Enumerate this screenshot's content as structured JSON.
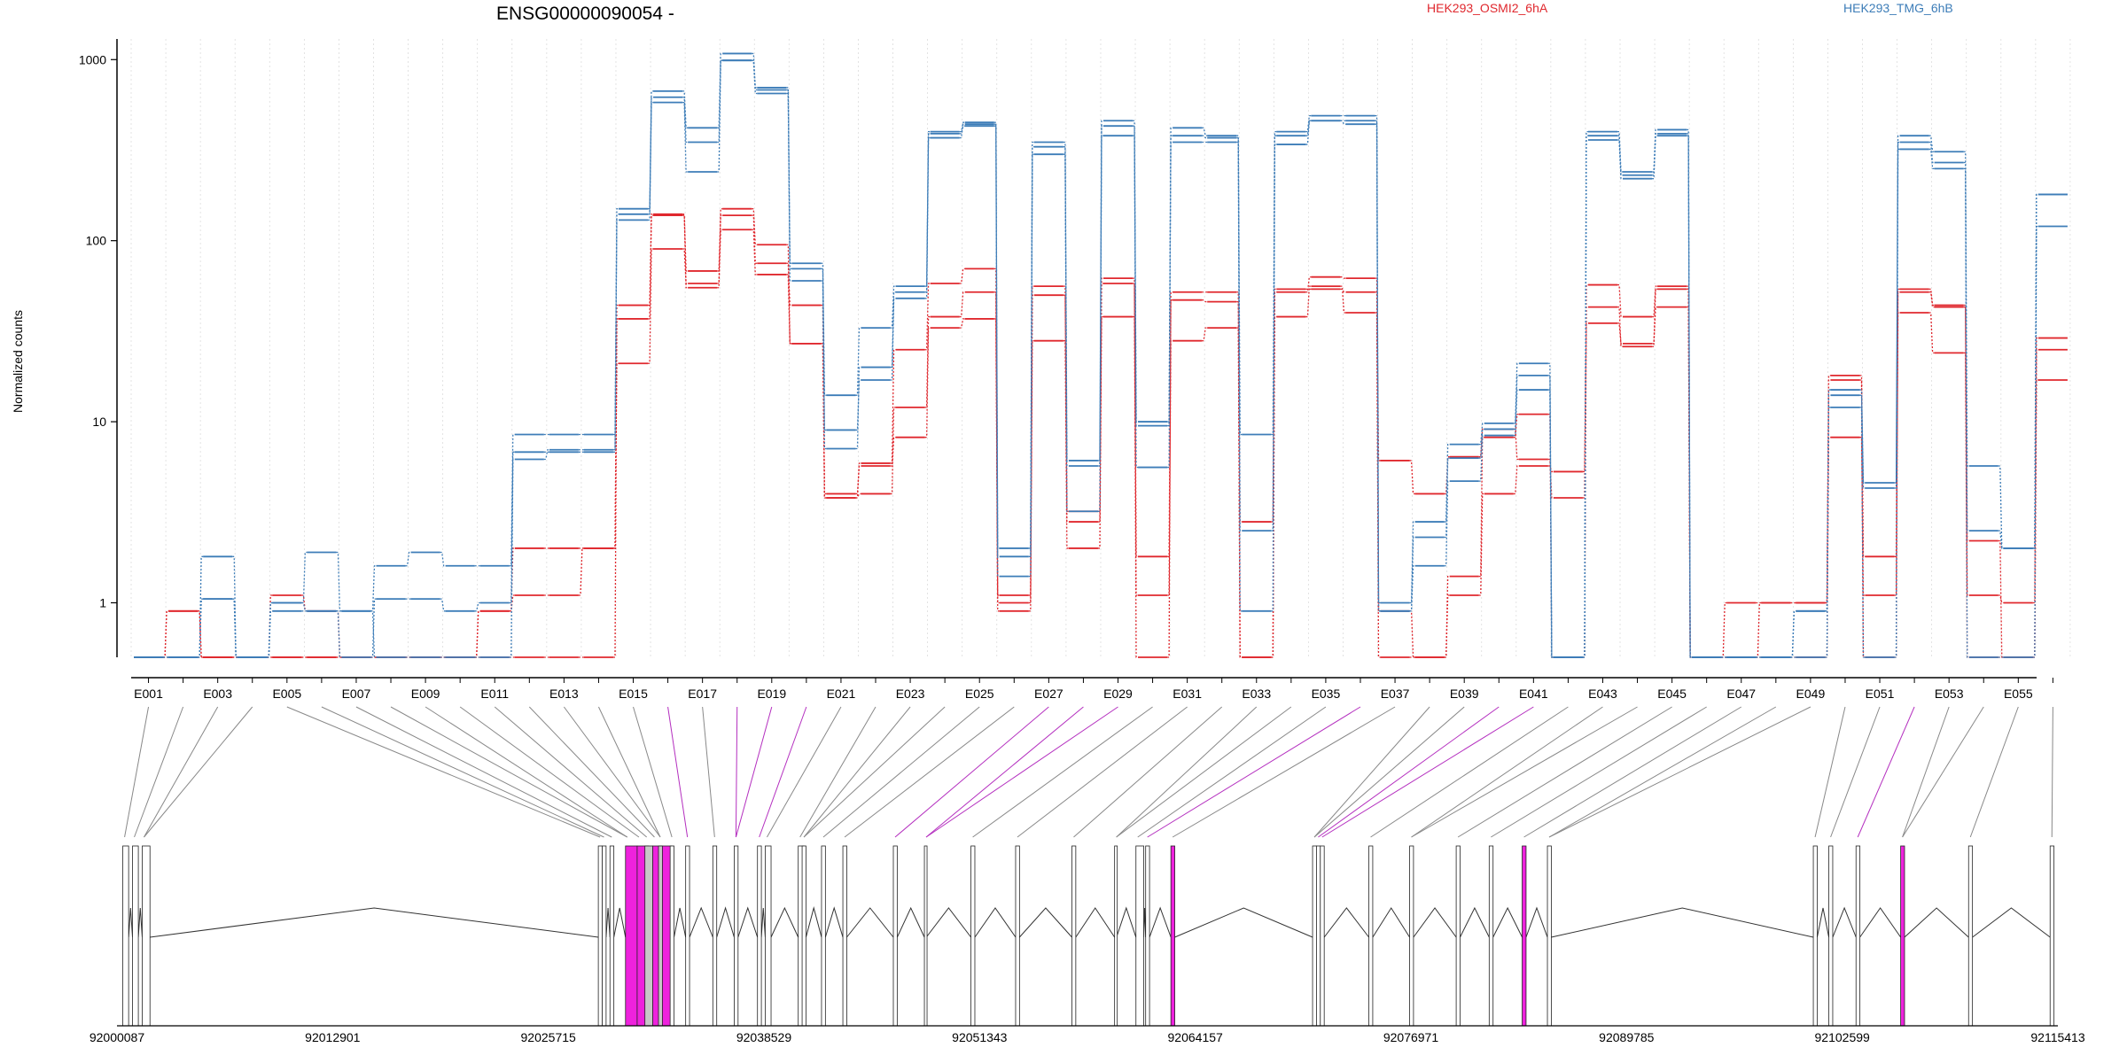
{
  "chart_data": {
    "type": "line",
    "title": "ENSG00000090054 -",
    "ylabel": "Normalized counts",
    "y_scale": "log",
    "y_ticks": [
      1,
      10,
      100,
      1000
    ],
    "y_tick_labels": [
      "1",
      "10",
      "100",
      "1000"
    ],
    "ylim": [
      0.5,
      1300
    ],
    "grid": "vertical lines per exon",
    "legend_placement": "top",
    "exons": [
      "E001",
      "E002",
      "E003",
      "E004",
      "E005",
      "E006",
      "E007",
      "E008",
      "E009",
      "E010",
      "E011",
      "E012",
      "E013",
      "E014",
      "E015",
      "E016",
      "E017",
      "E018",
      "E019",
      "E020",
      "E021",
      "E022",
      "E023",
      "E024",
      "E025",
      "E026",
      "E027",
      "E028",
      "E029",
      "E030",
      "E031",
      "E032",
      "E033",
      "E034",
      "E035",
      "E036",
      "E037",
      "E038",
      "E039",
      "E040",
      "E041",
      "E042",
      "E043",
      "E044",
      "E045",
      "E046",
      "E047",
      "E048",
      "E049",
      "E050",
      "E051",
      "E052",
      "E053",
      "E054",
      "E055",
      "E056"
    ],
    "x_tick_labels": [
      "E001",
      "E003",
      "E005",
      "E007",
      "E009",
      "E011",
      "E013",
      "E015",
      "E017",
      "E019",
      "E021",
      "E023",
      "E025",
      "E027",
      "E029",
      "E031",
      "E033",
      "E035",
      "E037",
      "E039",
      "E041",
      "E043",
      "E045",
      "E047",
      "E049",
      "E051",
      "E053",
      "E055"
    ],
    "series": [
      {
        "name": "HEK293_OSMI2_6hA",
        "color": "#e0282e",
        "replicates": [
          [
            0.5,
            0.5,
            0.5,
            0.5,
            1.1,
            0.9,
            0.5,
            0.5,
            0.5,
            0.5,
            0.9,
            1.1,
            1.1,
            2.0,
            21,
            90,
            58,
            115,
            65,
            27,
            4.0,
            5.7,
            8.2,
            33,
            37,
            0.9,
            28,
            2.0,
            38,
            1.1,
            28,
            33,
            0.5,
            38,
            56,
            40,
            0.5,
            0.5,
            1.1,
            4.0,
            5.7,
            5.3,
            35,
            27,
            43,
            0.5,
            0.5,
            0.5,
            0.5,
            8.2,
            1.1,
            40,
            24,
            0.5,
            0.5,
            17
          ],
          [
            0.5,
            0.9,
            0.5,
            0.5,
            0.5,
            0.5,
            0.5,
            0.5,
            0.5,
            0.5,
            0.5,
            0.5,
            0.5,
            0.5,
            37,
            138,
            68,
            138,
            75,
            44,
            3.8,
            4.0,
            12,
            38,
            52,
            1.1,
            50,
            2.8,
            58,
            1.8,
            47,
            46,
            2.8,
            54,
            54,
            52,
            0.9,
            0.5,
            1.4,
            8.2,
            11,
            0.5,
            43,
            26,
            54,
            0.5,
            0.5,
            1.0,
            1.0,
            18,
            1.8,
            54,
            44,
            1.1,
            1.0,
            29
          ],
          [
            0.5,
            0.9,
            0.5,
            0.5,
            0.5,
            0.5,
            0.5,
            0.5,
            0.5,
            0.5,
            0.9,
            2.0,
            2.0,
            2.0,
            44,
            140,
            55,
            150,
            95,
            27,
            3.8,
            5.9,
            25,
            58,
            70,
            1.0,
            56,
            3.2,
            62,
            0.5,
            52,
            52,
            0.5,
            52,
            63,
            62,
            6.1,
            4.0,
            6.4,
            9.1,
            6.2,
            3.8,
            57,
            38,
            56,
            0.5,
            1.0,
            1.0,
            1.0,
            17,
            0.5,
            52,
            43,
            2.2,
            0.5,
            25
          ]
        ]
      },
      {
        "name": "HEK293_TMG_6hB",
        "color": "#3d7db8",
        "replicates": [
          [
            0.5,
            0.5,
            1.05,
            0.5,
            0.9,
            0.9,
            0.9,
            0.5,
            0.5,
            0.5,
            0.5,
            6.2,
            7.0,
            7.0,
            130,
            580,
            240,
            990,
            680,
            70,
            9.0,
            17,
            48,
            370,
            440,
            1.8,
            300,
            5.7,
            380,
            9.5,
            350,
            350,
            0.9,
            340,
            460,
            440,
            0.9,
            1.6,
            4.7,
            8.4,
            15,
            0.5,
            360,
            220,
            380,
            0.5,
            0.5,
            0.5,
            0.9,
            12,
            0.5,
            320,
            250,
            0.5,
            0.5,
            120
          ],
          [
            0.5,
            0.5,
            1.05,
            0.5,
            1.0,
            0.9,
            0.5,
            1.05,
            1.05,
            0.9,
            1.0,
            6.8,
            6.8,
            6.8,
            140,
            620,
            350,
            990,
            650,
            60,
            7.1,
            20,
            52,
            390,
            430,
            1.4,
            330,
            3.2,
            430,
            5.6,
            380,
            370,
            2.5,
            380,
            460,
            460,
            0.9,
            2.3,
            6.3,
            9.1,
            18,
            0.5,
            380,
            230,
            390,
            0.5,
            0.5,
            0.5,
            0.5,
            14,
            4.3,
            350,
            270,
            2.5,
            2.0,
            180
          ],
          [
            0.5,
            0.5,
            1.8,
            0.5,
            1.0,
            1.9,
            0.9,
            1.6,
            1.9,
            1.6,
            1.6,
            8.5,
            8.5,
            8.5,
            150,
            670,
            420,
            1080,
            700,
            75,
            14,
            33,
            56,
            400,
            450,
            2.0,
            350,
            6.1,
            460,
            10,
            420,
            380,
            8.5,
            400,
            490,
            490,
            1.0,
            2.8,
            7.5,
            9.8,
            21,
            0.5,
            400,
            240,
            410,
            0.5,
            0.5,
            0.5,
            0.9,
            15,
            4.6,
            380,
            310,
            5.7,
            2.0,
            180
          ]
        ]
      }
    ],
    "genome_axis_labels": [
      "92000087",
      "92012901",
      "92025715",
      "92038529",
      "92051343",
      "92064157",
      "92076971",
      "92089785",
      "92102599",
      "92115413"
    ],
    "highlighted_exons": [
      "E016",
      "E018",
      "E019",
      "E020",
      "E027",
      "E028",
      "E029",
      "E036",
      "E040",
      "E041",
      "E052"
    ]
  }
}
